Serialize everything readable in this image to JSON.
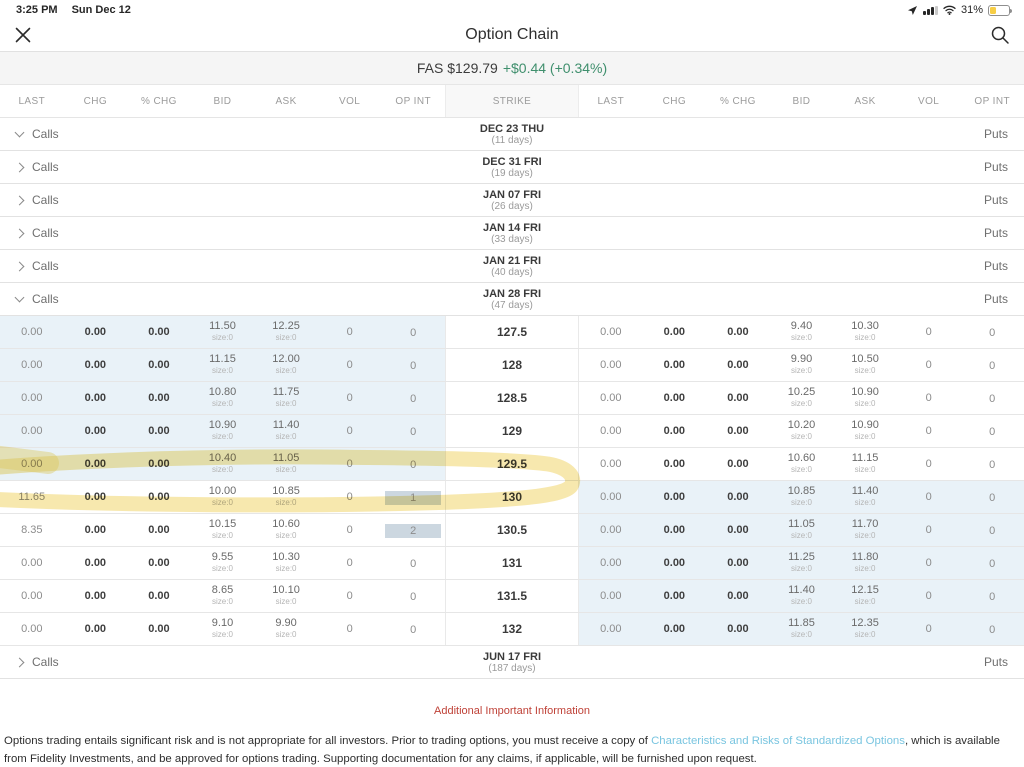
{
  "status_bar": {
    "time": "3:25 PM",
    "date": "Sun Dec 12",
    "battery_percent": "31%"
  },
  "header": {
    "title": "Option Chain"
  },
  "ticker": {
    "quote": "FAS $129.79",
    "change": "+$0.44 (+0.34%)"
  },
  "table": {
    "calls_columns": [
      "LAST",
      "CHG",
      "% CHG",
      "BID",
      "ASK",
      "VOL",
      "OP INT"
    ],
    "strike_column": "STRIKE",
    "puts_columns": [
      "LAST",
      "CHG",
      "% CHG",
      "BID",
      "ASK",
      "VOL",
      "OP INT"
    ],
    "calls_label": "Calls",
    "puts_label": "Puts",
    "groups": [
      {
        "date": "DEC 23 THU",
        "days": "(11 days)",
        "expanded": true,
        "rows": []
      },
      {
        "date": "DEC 31 FRI",
        "days": "(19 days)",
        "expanded": false,
        "rows": []
      },
      {
        "date": "JAN 07 FRI",
        "days": "(26 days)",
        "expanded": false,
        "rows": []
      },
      {
        "date": "JAN 14 FRI",
        "days": "(33 days)",
        "expanded": false,
        "rows": []
      },
      {
        "date": "JAN 21 FRI",
        "days": "(40 days)",
        "expanded": false,
        "rows": []
      },
      {
        "date": "JAN 28 FRI",
        "days": "(47 days)",
        "expanded": true,
        "highlight": true,
        "rows": [
          {
            "strike": "127.5",
            "calls": {
              "last": "0.00",
              "chg": "0.00",
              "pchg": "0.00",
              "bid": "11.50",
              "bid_size": "size:0",
              "ask": "12.25",
              "ask_size": "size:0",
              "vol": "0",
              "op_int": "0",
              "itm": true,
              "op_int_boxed": false
            },
            "puts": {
              "last": "0.00",
              "chg": "0.00",
              "pchg": "0.00",
              "bid": "9.40",
              "bid_size": "size:0",
              "ask": "10.30",
              "ask_size": "size:0",
              "vol": "0",
              "op_int": "0",
              "itm": false,
              "op_int_boxed": false
            }
          },
          {
            "strike": "128",
            "calls": {
              "last": "0.00",
              "chg": "0.00",
              "pchg": "0.00",
              "bid": "11.15",
              "bid_size": "size:0",
              "ask": "12.00",
              "ask_size": "size:0",
              "vol": "0",
              "op_int": "0",
              "itm": true,
              "op_int_boxed": false
            },
            "puts": {
              "last": "0.00",
              "chg": "0.00",
              "pchg": "0.00",
              "bid": "9.90",
              "bid_size": "size:0",
              "ask": "10.50",
              "ask_size": "size:0",
              "vol": "0",
              "op_int": "0",
              "itm": false,
              "op_int_boxed": false
            }
          },
          {
            "strike": "128.5",
            "calls": {
              "last": "0.00",
              "chg": "0.00",
              "pchg": "0.00",
              "bid": "10.80",
              "bid_size": "size:0",
              "ask": "11.75",
              "ask_size": "size:0",
              "vol": "0",
              "op_int": "0",
              "itm": true,
              "op_int_boxed": false
            },
            "puts": {
              "last": "0.00",
              "chg": "0.00",
              "pchg": "0.00",
              "bid": "10.25",
              "bid_size": "size:0",
              "ask": "10.90",
              "ask_size": "size:0",
              "vol": "0",
              "op_int": "0",
              "itm": false,
              "op_int_boxed": false
            }
          },
          {
            "strike": "129",
            "calls": {
              "last": "0.00",
              "chg": "0.00",
              "pchg": "0.00",
              "bid": "10.90",
              "bid_size": "size:0",
              "ask": "11.40",
              "ask_size": "size:0",
              "vol": "0",
              "op_int": "0",
              "itm": true,
              "op_int_boxed": false
            },
            "puts": {
              "last": "0.00",
              "chg": "0.00",
              "pchg": "0.00",
              "bid": "10.20",
              "bid_size": "size:0",
              "ask": "10.90",
              "ask_size": "size:0",
              "vol": "0",
              "op_int": "0",
              "itm": false,
              "op_int_boxed": false
            }
          },
          {
            "strike": "129.5",
            "calls": {
              "last": "0.00",
              "chg": "0.00",
              "pchg": "0.00",
              "bid": "10.40",
              "bid_size": "size:0",
              "ask": "11.05",
              "ask_size": "size:0",
              "vol": "0",
              "op_int": "0",
              "itm": true,
              "op_int_boxed": false
            },
            "puts": {
              "last": "0.00",
              "chg": "0.00",
              "pchg": "0.00",
              "bid": "10.60",
              "bid_size": "size:0",
              "ask": "11.15",
              "ask_size": "size:0",
              "vol": "0",
              "op_int": "0",
              "itm": false,
              "op_int_boxed": false
            }
          },
          {
            "strike": "130",
            "calls": {
              "last": "11.65",
              "chg": "0.00",
              "pchg": "0.00",
              "bid": "10.00",
              "bid_size": "size:0",
              "ask": "10.85",
              "ask_size": "size:0",
              "vol": "0",
              "op_int": "1",
              "itm": false,
              "op_int_boxed": true
            },
            "puts": {
              "last": "0.00",
              "chg": "0.00",
              "pchg": "0.00",
              "bid": "10.85",
              "bid_size": "size:0",
              "ask": "11.40",
              "ask_size": "size:0",
              "vol": "0",
              "op_int": "0",
              "itm": true,
              "op_int_boxed": false
            }
          },
          {
            "strike": "130.5",
            "calls": {
              "last": "8.35",
              "chg": "0.00",
              "pchg": "0.00",
              "bid": "10.15",
              "bid_size": "size:0",
              "ask": "10.60",
              "ask_size": "size:0",
              "vol": "0",
              "op_int": "2",
              "itm": false,
              "op_int_boxed": true
            },
            "puts": {
              "last": "0.00",
              "chg": "0.00",
              "pchg": "0.00",
              "bid": "11.05",
              "bid_size": "size:0",
              "ask": "11.70",
              "ask_size": "size:0",
              "vol": "0",
              "op_int": "0",
              "itm": true,
              "op_int_boxed": false
            }
          },
          {
            "strike": "131",
            "calls": {
              "last": "0.00",
              "chg": "0.00",
              "pchg": "0.00",
              "bid": "9.55",
              "bid_size": "size:0",
              "ask": "10.30",
              "ask_size": "size:0",
              "vol": "0",
              "op_int": "0",
              "itm": false,
              "op_int_boxed": false
            },
            "puts": {
              "last": "0.00",
              "chg": "0.00",
              "pchg": "0.00",
              "bid": "11.25",
              "bid_size": "size:0",
              "ask": "11.80",
              "ask_size": "size:0",
              "vol": "0",
              "op_int": "0",
              "itm": true,
              "op_int_boxed": false
            }
          },
          {
            "strike": "131.5",
            "calls": {
              "last": "0.00",
              "chg": "0.00",
              "pchg": "0.00",
              "bid": "8.65",
              "bid_size": "size:0",
              "ask": "10.10",
              "ask_size": "size:0",
              "vol": "0",
              "op_int": "0",
              "itm": false,
              "op_int_boxed": false
            },
            "puts": {
              "last": "0.00",
              "chg": "0.00",
              "pchg": "0.00",
              "bid": "11.40",
              "bid_size": "size:0",
              "ask": "12.15",
              "ask_size": "size:0",
              "vol": "0",
              "op_int": "0",
              "itm": true,
              "op_int_boxed": false
            }
          },
          {
            "strike": "132",
            "calls": {
              "last": "0.00",
              "chg": "0.00",
              "pchg": "0.00",
              "bid": "9.10",
              "bid_size": "size:0",
              "ask": "9.90",
              "ask_size": "size:0",
              "vol": "0",
              "op_int": "0",
              "itm": false,
              "op_int_boxed": false
            },
            "puts": {
              "last": "0.00",
              "chg": "0.00",
              "pchg": "0.00",
              "bid": "11.85",
              "bid_size": "size:0",
              "ask": "12.35",
              "ask_size": "size:0",
              "vol": "0",
              "op_int": "0",
              "itm": true,
              "op_int_boxed": false
            }
          }
        ]
      },
      {
        "date": "JUN 17 FRI",
        "days": "(187 days)",
        "expanded": false,
        "rows": []
      }
    ]
  },
  "footer": {
    "info_link": "Additional Important Information",
    "disclaimer_pre": "Options trading entails significant risk and is not appropriate for all investors. Prior to trading options, you must receive a copy of ",
    "disclaimer_link": "Characteristics and Risks of Standardized Options",
    "disclaimer_post": ", which is available from Fidelity Investments, and be approved for options trading. Supporting documentation for any claims, if applicable, will be furnished upon request."
  },
  "colors": {
    "change_green": "#3f8f6d",
    "itm_blue": "#e9f2f8",
    "highlight_yellow": "#f0d15e",
    "link_blue": "#79c5e0",
    "info_red": "#bf4137"
  }
}
